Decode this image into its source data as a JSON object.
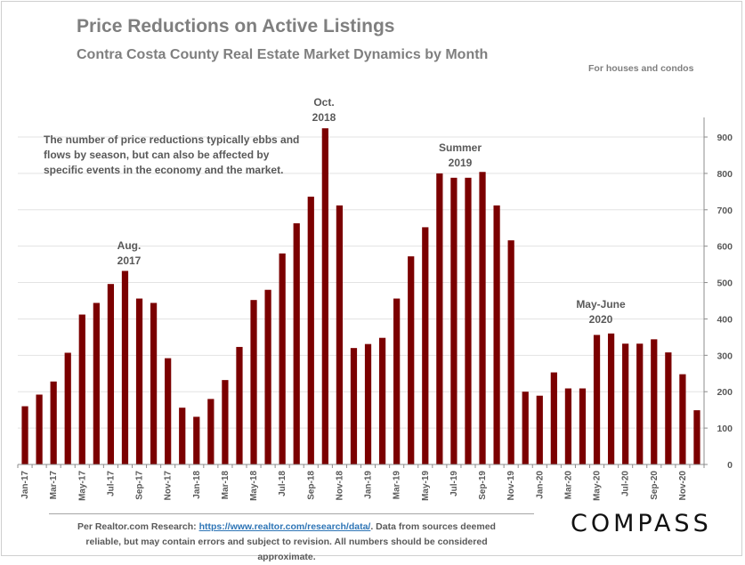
{
  "header": {
    "title": "Price Reductions on Active Listings",
    "subtitle": "Contra Costa County Real Estate Market Dynamics by Month",
    "note": "For houses and condos"
  },
  "callout": "The number of price reductions typically ebbs and flows by season, but can also be affected by specific events in the economy and the market.",
  "annotations": {
    "aug2017": [
      "Aug.",
      "2017"
    ],
    "oct2018": [
      "Oct.",
      "2018"
    ],
    "summer2019": [
      "Summer",
      "2019"
    ],
    "mayjune2020": [
      "May-June",
      "2020"
    ]
  },
  "footer": {
    "prefix": "Per Realtor.com Research:",
    "link": "https://www.realtor.com/research/data/",
    "suffix": ". Data from sources deemed reliable, but may contain errors and subject to revision. All numbers should be considered approximate."
  },
  "logo": "COMPASS",
  "chart_data": {
    "type": "bar",
    "title": "Price Reductions on Active Listings",
    "categories": [
      "Jan-17",
      "Feb-17",
      "Mar-17",
      "Apr-17",
      "May-17",
      "Jun-17",
      "Jul-17",
      "Aug-17",
      "Sep-17",
      "Oct-17",
      "Nov-17",
      "Dec-17",
      "Jan-18",
      "Feb-18",
      "Mar-18",
      "Apr-18",
      "May-18",
      "Jun-18",
      "Jul-18",
      "Aug-18",
      "Sep-18",
      "Oct-18",
      "Nov-18",
      "Dec-18",
      "Jan-19",
      "Feb-19",
      "Mar-19",
      "Apr-19",
      "May-19",
      "Jun-19",
      "Jul-19",
      "Aug-19",
      "Sep-19",
      "Oct-19",
      "Nov-19",
      "Dec-19",
      "Jan-20",
      "Feb-20",
      "Mar-20",
      "Apr-20",
      "May-20",
      "Jun-20",
      "Jul-20",
      "Aug-20",
      "Sep-20",
      "Oct-20",
      "Nov-20",
      "Dec-20"
    ],
    "values": [
      160,
      192,
      228,
      307,
      412,
      444,
      496,
      532,
      456,
      444,
      292,
      156,
      131,
      180,
      232,
      323,
      452,
      480,
      580,
      663,
      736,
      924,
      712,
      320,
      331,
      348,
      456,
      572,
      652,
      800,
      788,
      788,
      804,
      712,
      616,
      200,
      189,
      253,
      209,
      209,
      356,
      360,
      332,
      332,
      344,
      308,
      248,
      149
    ],
    "bar_color": "#7b0000",
    "tick_every": 2,
    "ylim": [
      0,
      900
    ],
    "yticks": [
      0,
      100,
      200,
      300,
      400,
      500,
      600,
      700,
      800,
      900
    ],
    "y_axis_side": "right",
    "grid": true
  }
}
